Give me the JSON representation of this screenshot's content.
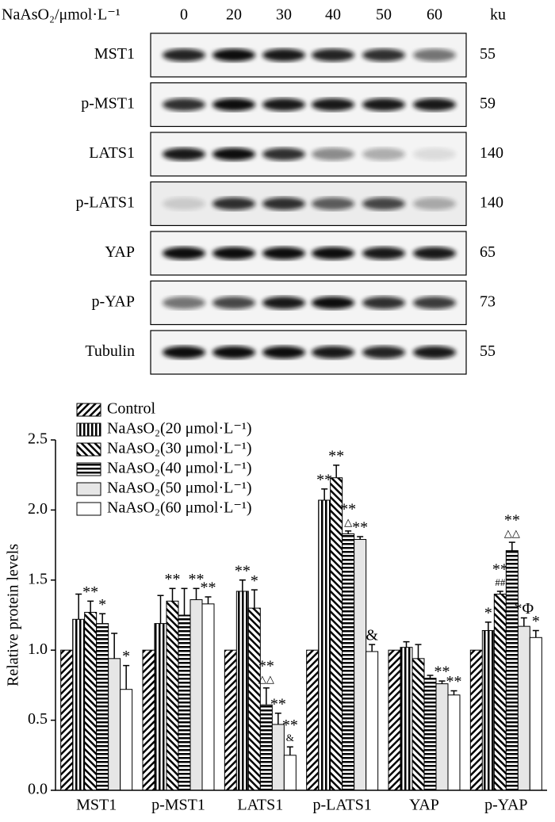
{
  "blot": {
    "header": "NaAsO₂/μmol·L⁻¹",
    "unit": "ku",
    "concentrations": [
      "0",
      "20",
      "30",
      "40",
      "50",
      "60"
    ],
    "rows": [
      {
        "protein": "MST1",
        "ku": "55"
      },
      {
        "protein": "p-MST1",
        "ku": "59"
      },
      {
        "protein": "LATS1",
        "ku": "140"
      },
      {
        "protein": "p-LATS1",
        "ku": "140"
      },
      {
        "protein": "YAP",
        "ku": "65"
      },
      {
        "protein": "p-YAP",
        "ku": "73"
      },
      {
        "protein": "Tubulin",
        "ku": "55"
      }
    ]
  },
  "chart_data": {
    "type": "bar",
    "y_label": "Relative protein levels",
    "categories": [
      "MST1",
      "p-MST1",
      "LATS1",
      "p-LATS1",
      "YAP",
      "p-YAP"
    ],
    "ylim": [
      0,
      2.5
    ],
    "yticks": [
      {
        "value": 0,
        "label": "0.0"
      },
      {
        "value": 0.5,
        "label": "0.5"
      },
      {
        "value": 1,
        "label": "1.0"
      },
      {
        "value": 1.5,
        "label": "1.5"
      },
      {
        "value": 2,
        "label": "2.0"
      },
      {
        "value": 2.5,
        "label": "2.5"
      }
    ],
    "series": [
      {
        "name": "Control",
        "pattern": "diagonal",
        "color": "#000000",
        "values": [
          1.0,
          1.0,
          1.0,
          1.0,
          1.0,
          1.0
        ],
        "errors": [
          0,
          0,
          0,
          0,
          0,
          0
        ],
        "sig": [
          null,
          null,
          null,
          null,
          null,
          null
        ]
      },
      {
        "name": "NaAsO₂(20 μmol·L⁻¹)",
        "pattern": "vertical",
        "color": "#000000",
        "values": [
          1.22,
          1.19,
          1.42,
          2.07,
          1.02,
          1.14
        ],
        "errors": [
          0.18,
          0.2,
          0.08,
          0.08,
          0.04,
          0.06
        ],
        "sig": [
          null,
          null,
          [
            "**"
          ],
          [
            "**"
          ],
          null,
          [
            "*"
          ]
        ]
      },
      {
        "name": "NaAsO₂(30 μmol·L⁻¹)",
        "pattern": "backslash",
        "color": "#000000",
        "values": [
          1.27,
          1.35,
          1.3,
          2.23,
          0.94,
          1.4
        ],
        "errors": [
          0.08,
          0.09,
          0.13,
          0.09,
          0.1,
          0.02
        ],
        "sig": [
          [
            "**"
          ],
          [
            "**"
          ],
          [
            "*"
          ],
          [
            "**"
          ],
          null,
          [
            "**",
            "##"
          ]
        ]
      },
      {
        "name": "NaAsO₂(40 μmol·L⁻¹)",
        "pattern": "horizontal",
        "color": "#000000",
        "values": [
          1.19,
          1.25,
          0.61,
          1.83,
          0.8,
          1.71
        ],
        "errors": [
          0.07,
          0.19,
          0.12,
          0.02,
          0.02,
          0.06
        ],
        "sig": [
          [
            "*"
          ],
          null,
          [
            "**",
            "△△"
          ],
          [
            "**",
            "△"
          ],
          null,
          [
            "**",
            "△△"
          ]
        ]
      },
      {
        "name": "NaAsO₂(50 μmol·L⁻¹)",
        "pattern": "gray",
        "color": "#e6e6e6",
        "values": [
          0.94,
          1.36,
          0.47,
          1.79,
          0.76,
          1.17
        ],
        "errors": [
          0.18,
          0.08,
          0.08,
          0.02,
          0.02,
          0.06
        ],
        "sig": [
          null,
          [
            "**"
          ],
          [
            "**"
          ],
          [
            "**"
          ],
          [
            "**"
          ],
          [
            "*Φ"
          ]
        ]
      },
      {
        "name": "NaAsO₂(60 μmol·L⁻¹)",
        "pattern": "white",
        "color": "#ffffff",
        "values": [
          0.72,
          1.33,
          0.25,
          0.99,
          0.68,
          1.09
        ],
        "errors": [
          0.17,
          0.05,
          0.06,
          0.05,
          0.03,
          0.05
        ],
        "sig": [
          [
            "*"
          ],
          [
            "**"
          ],
          [
            "**",
            "&"
          ],
          [
            "&"
          ],
          [
            "**"
          ],
          [
            "*"
          ]
        ]
      }
    ]
  }
}
